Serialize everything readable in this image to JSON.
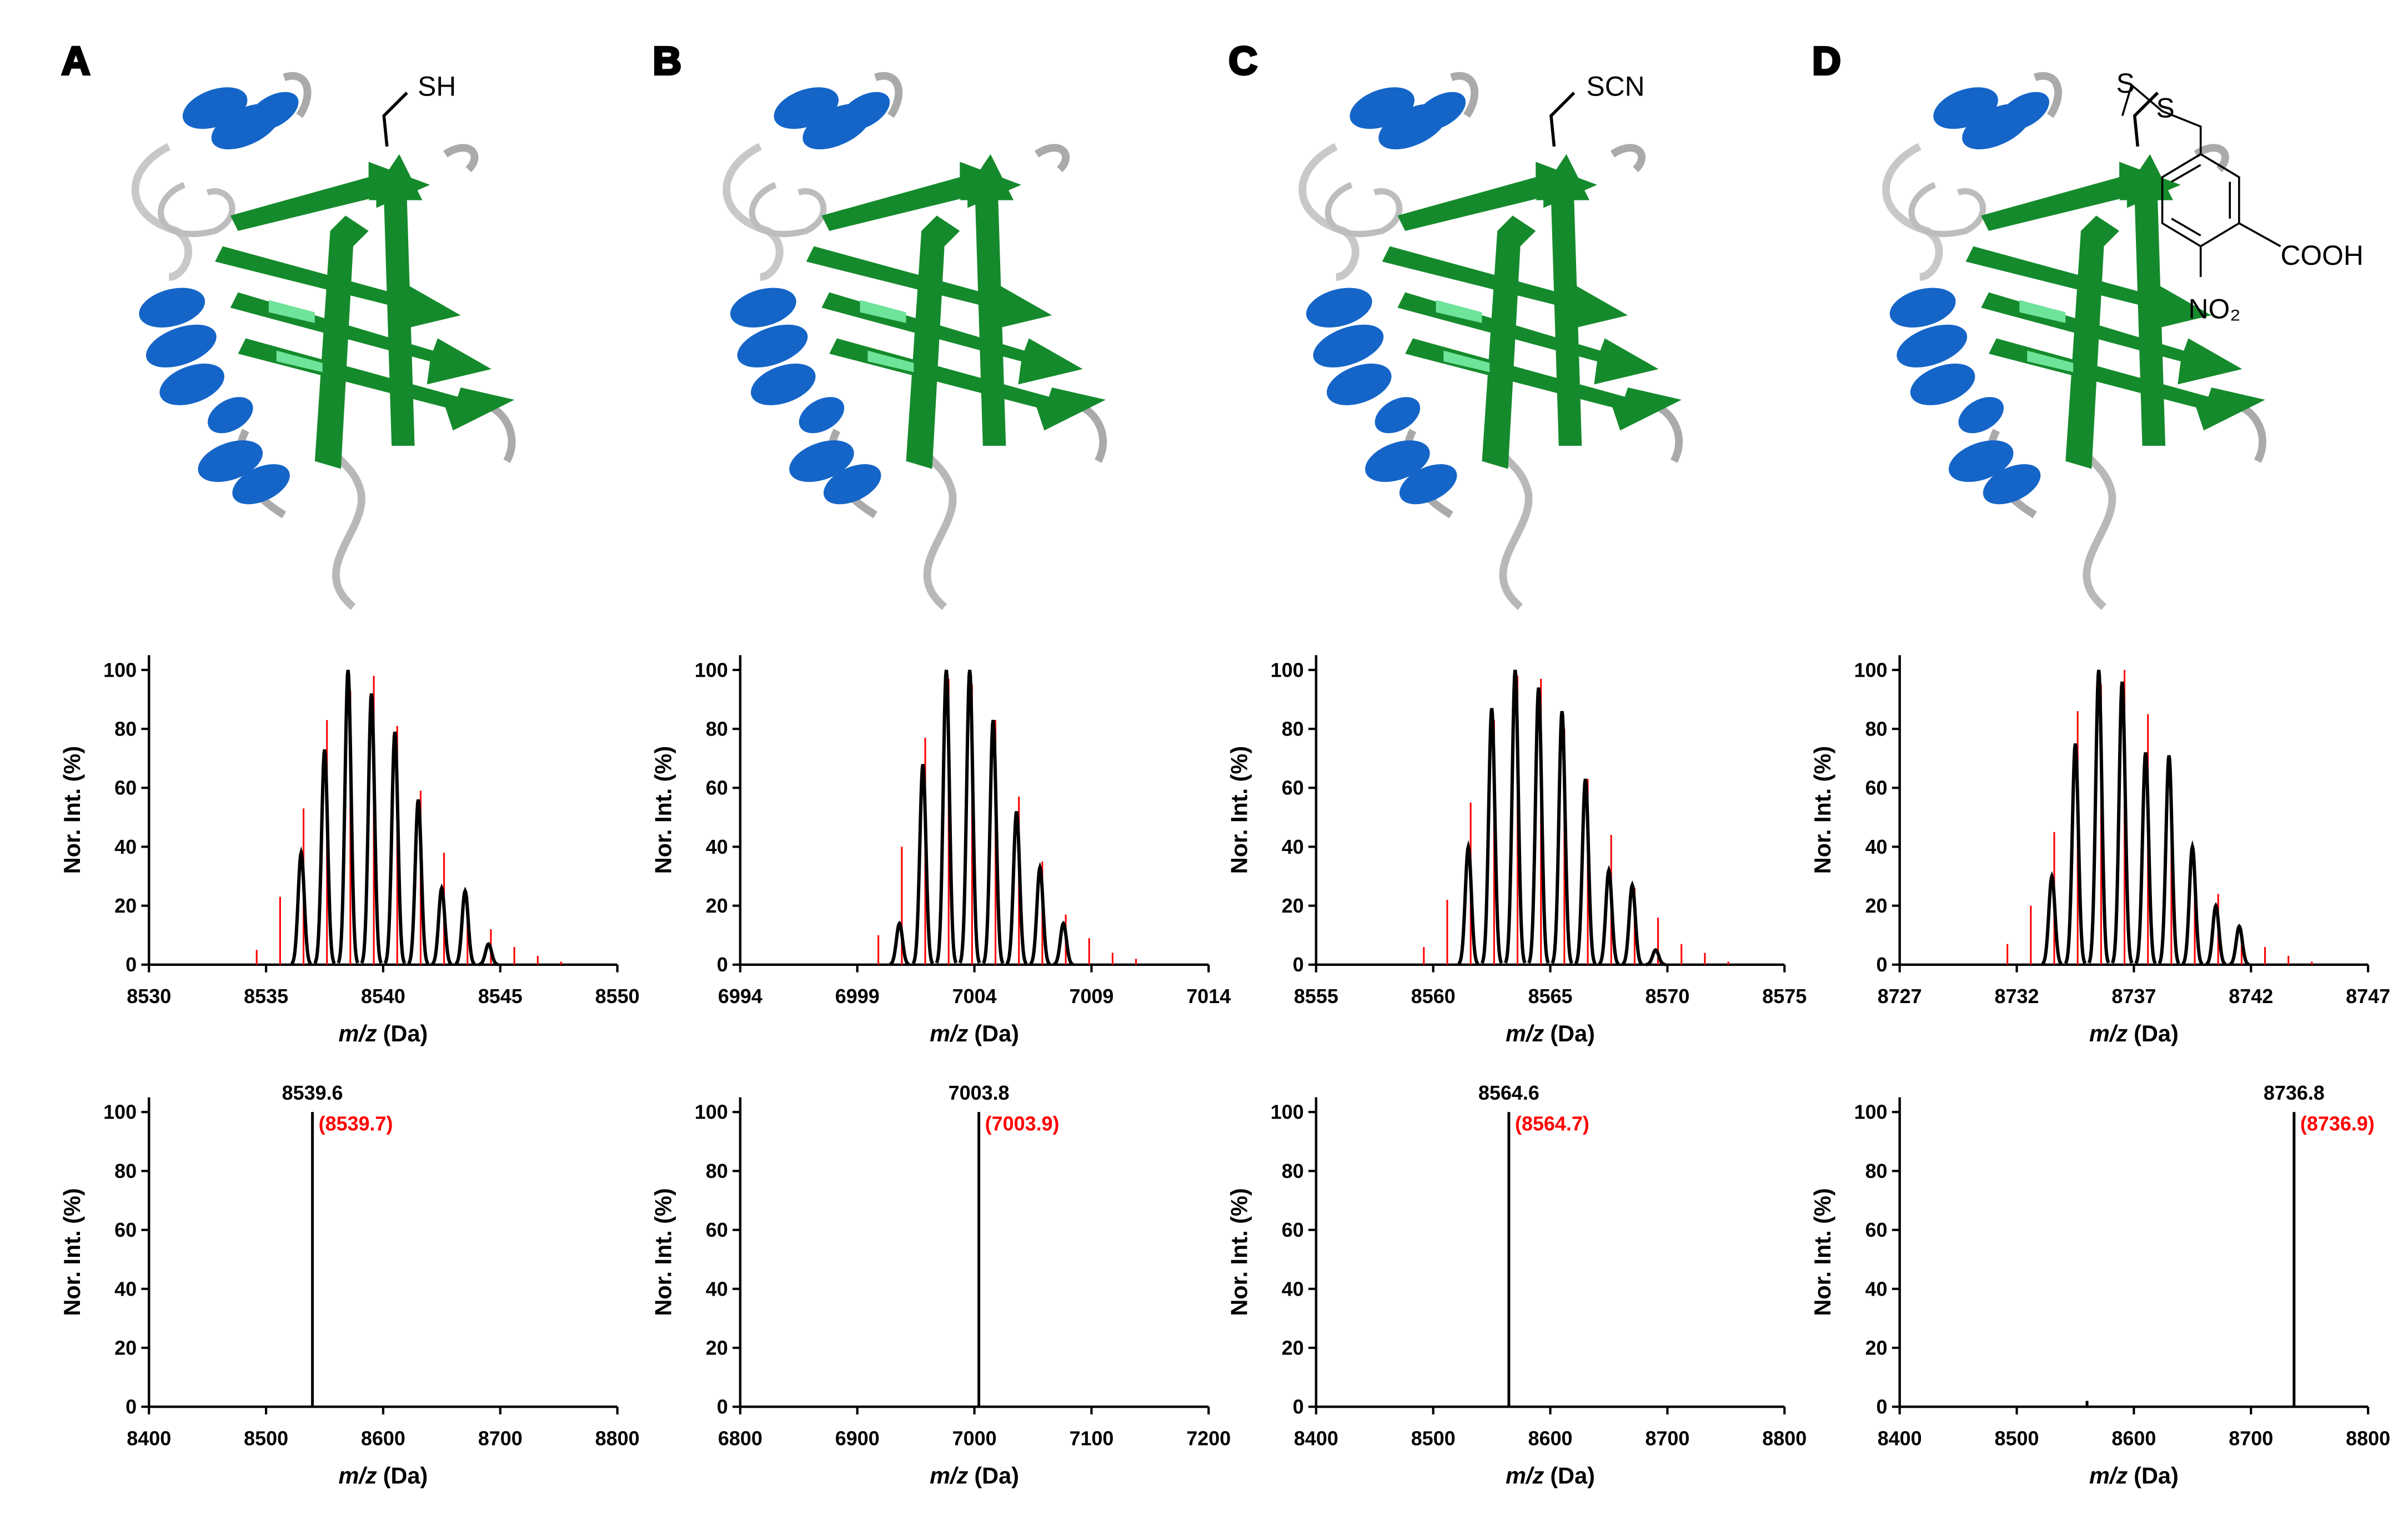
{
  "panels": [
    {
      "label": "A",
      "groups": [
        "SH"
      ]
    },
    {
      "label": "B",
      "groups": []
    },
    {
      "label": "C",
      "groups": [
        "SCN"
      ]
    },
    {
      "label": "D",
      "groups": [
        "S",
        "S",
        "COOH",
        "NO₂"
      ]
    }
  ],
  "chart_data": [
    {
      "type": "spectrum",
      "ylabel": "Nor. Int. (%)",
      "xlabel": [
        "m/z",
        "(Da)"
      ],
      "xlim": [
        8530,
        8550
      ],
      "xticks": [
        8530,
        8535,
        8540,
        8545,
        8550
      ],
      "ylim": [
        0,
        105
      ],
      "yticks": [
        0,
        20,
        40,
        60,
        80,
        100
      ],
      "series": [
        {
          "kind": "stick",
          "color": "#ff0000",
          "x": [
            8534.6,
            8535.6,
            8536.6,
            8537.6,
            8538.6,
            8539.6,
            8540.6,
            8541.6,
            8542.6,
            8543.6,
            8544.6,
            8545.6,
            8546.6,
            8547.6
          ],
          "values": [
            5,
            23,
            53,
            83,
            93,
            98,
            81,
            59,
            38,
            23,
            12,
            6,
            3,
            1
          ]
        },
        {
          "kind": "profile",
          "color": "#000000",
          "x": [
            8536.5,
            8537.5,
            8538.5,
            8539.5,
            8540.5,
            8541.5,
            8542.5,
            8543.5,
            8544.5
          ],
          "values": [
            38,
            73,
            100,
            92,
            79,
            56,
            26,
            25,
            7
          ]
        }
      ]
    },
    {
      "type": "spectrum",
      "ylabel": "Nor. Int. (%)",
      "xlabel": [
        "m/z",
        "(Da)"
      ],
      "xlim": [
        8400,
        8800
      ],
      "xticks": [
        8400,
        8500,
        8600,
        8700,
        8800
      ],
      "ylim": [
        0,
        105
      ],
      "yticks": [
        0,
        20,
        40,
        60,
        80,
        100
      ],
      "series": [
        {
          "kind": "stick",
          "color": "#000000",
          "x": [
            8539.6
          ],
          "values": [
            100
          ]
        }
      ],
      "labels": [
        {
          "text": "(8539.7)",
          "color": "#ff0000"
        }
      ]
    },
    {
      "type": "spectrum",
      "ylabel": "Nor. Int. (%)",
      "xlabel": [
        "m/z",
        "(Da)"
      ],
      "xlim": [
        6994,
        7014
      ],
      "xticks": [
        6994,
        6999,
        7004,
        7009,
        7014
      ],
      "ylim": [
        0,
        105
      ],
      "yticks": [
        0,
        20,
        40,
        60,
        80,
        100
      ],
      "series": [
        {
          "kind": "stick",
          "color": "#ff0000",
          "x": [
            6999.9,
            7000.9,
            7001.9,
            7002.9,
            7003.9,
            7004.9,
            7005.9,
            7006.9,
            7007.9,
            7008.9,
            7009.9,
            7010.9
          ],
          "values": [
            10,
            40,
            77,
            97,
            95,
            83,
            57,
            35,
            17,
            9,
            4,
            2
          ]
        },
        {
          "kind": "profile",
          "color": "#000000",
          "x": [
            7000.8,
            7001.8,
            7002.8,
            7003.8,
            7004.8,
            7005.8,
            7006.8,
            7007.8
          ],
          "values": [
            14,
            68,
            100,
            100,
            83,
            52,
            33,
            14
          ]
        }
      ]
    },
    {
      "type": "spectrum",
      "ylabel": "Nor. Int. (%)",
      "xlabel": [
        "m/z",
        "(Da)"
      ],
      "xlim": [
        6800,
        7200
      ],
      "xticks": [
        6800,
        6900,
        7000,
        7100,
        7200
      ],
      "ylim": [
        0,
        105
      ],
      "yticks": [
        0,
        20,
        40,
        60,
        80,
        100
      ],
      "series": [
        {
          "kind": "stick",
          "color": "#000000",
          "x": [
            7003.8
          ],
          "values": [
            100
          ]
        }
      ],
      "labels": [
        {
          "text": "(7003.9)",
          "color": "#ff0000"
        }
      ]
    },
    {
      "type": "spectrum",
      "ylabel": "Nor. Int. (%)",
      "xlabel": [
        "m/z",
        "(Da)"
      ],
      "xlim": [
        8555,
        8575
      ],
      "xticks": [
        8555,
        8560,
        8565,
        8570,
        8575
      ],
      "ylim": [
        0,
        105
      ],
      "yticks": [
        0,
        20,
        40,
        60,
        80,
        100
      ],
      "series": [
        {
          "kind": "stick",
          "color": "#ff0000",
          "x": [
            8559.6,
            8560.6,
            8561.6,
            8562.6,
            8563.6,
            8564.6,
            8565.6,
            8566.6,
            8567.6,
            8568.6,
            8569.6,
            8570.6,
            8571.6,
            8572.6
          ],
          "values": [
            6,
            22,
            55,
            83,
            98,
            97,
            80,
            63,
            44,
            26,
            16,
            7,
            4,
            1
          ]
        },
        {
          "kind": "profile",
          "color": "#000000",
          "x": [
            8561.5,
            8562.5,
            8563.5,
            8564.5,
            8565.5,
            8566.5,
            8567.5,
            8568.5,
            8569.5
          ],
          "values": [
            40,
            87,
            100,
            94,
            86,
            63,
            32,
            27,
            5
          ]
        }
      ]
    },
    {
      "type": "spectrum",
      "ylabel": "Nor. Int. (%)",
      "xlabel": [
        "m/z",
        "(Da)"
      ],
      "xlim": [
        8400,
        8800
      ],
      "xticks": [
        8400,
        8500,
        8600,
        8700,
        8800
      ],
      "ylim": [
        0,
        105
      ],
      "yticks": [
        0,
        20,
        40,
        60,
        80,
        100
      ],
      "series": [
        {
          "kind": "stick",
          "color": "#000000",
          "x": [
            8564.6
          ],
          "values": [
            100
          ]
        }
      ],
      "labels": [
        {
          "text": "(8564.7)",
          "color": "#ff0000"
        }
      ]
    },
    {
      "type": "spectrum",
      "ylabel": "Nor. Int. (%)",
      "xlabel": [
        "m/z",
        "(Da)"
      ],
      "xlim": [
        8727,
        8747
      ],
      "xticks": [
        8727,
        8732,
        8737,
        8742,
        8747
      ],
      "ylim": [
        0,
        105
      ],
      "yticks": [
        0,
        20,
        40,
        60,
        80,
        100
      ],
      "series": [
        {
          "kind": "stick",
          "color": "#ff0000",
          "x": [
            8731.6,
            8732.6,
            8733.6,
            8734.6,
            8735.6,
            8736.6,
            8737.6,
            8738.6,
            8739.6,
            8740.6,
            8741.6,
            8742.6,
            8743.6,
            8744.6
          ],
          "values": [
            7,
            20,
            45,
            86,
            95,
            100,
            85,
            60,
            35,
            24,
            12,
            6,
            3,
            1
          ]
        },
        {
          "kind": "profile",
          "color": "#000000",
          "x": [
            8733.5,
            8734.5,
            8735.5,
            8736.5,
            8737.5,
            8738.5,
            8739.5,
            8740.5,
            8741.5
          ],
          "values": [
            30,
            75,
            100,
            96,
            72,
            71,
            40,
            20,
            13
          ]
        }
      ]
    },
    {
      "type": "spectrum",
      "ylabel": "Nor. Int. (%)",
      "xlabel": [
        "m/z",
        "(Da)"
      ],
      "xlim": [
        8400,
        8800
      ],
      "xticks": [
        8400,
        8500,
        8600,
        8700,
        8800
      ],
      "ylim": [
        0,
        105
      ],
      "yticks": [
        0,
        20,
        40,
        60,
        80,
        100
      ],
      "series": [
        {
          "kind": "stick",
          "color": "#000000",
          "x": [
            8560,
            8736.8
          ],
          "values": [
            2,
            100
          ]
        }
      ],
      "labels": [
        {
          "text": "(8736.9)",
          "color": "#ff0000"
        }
      ]
    }
  ]
}
